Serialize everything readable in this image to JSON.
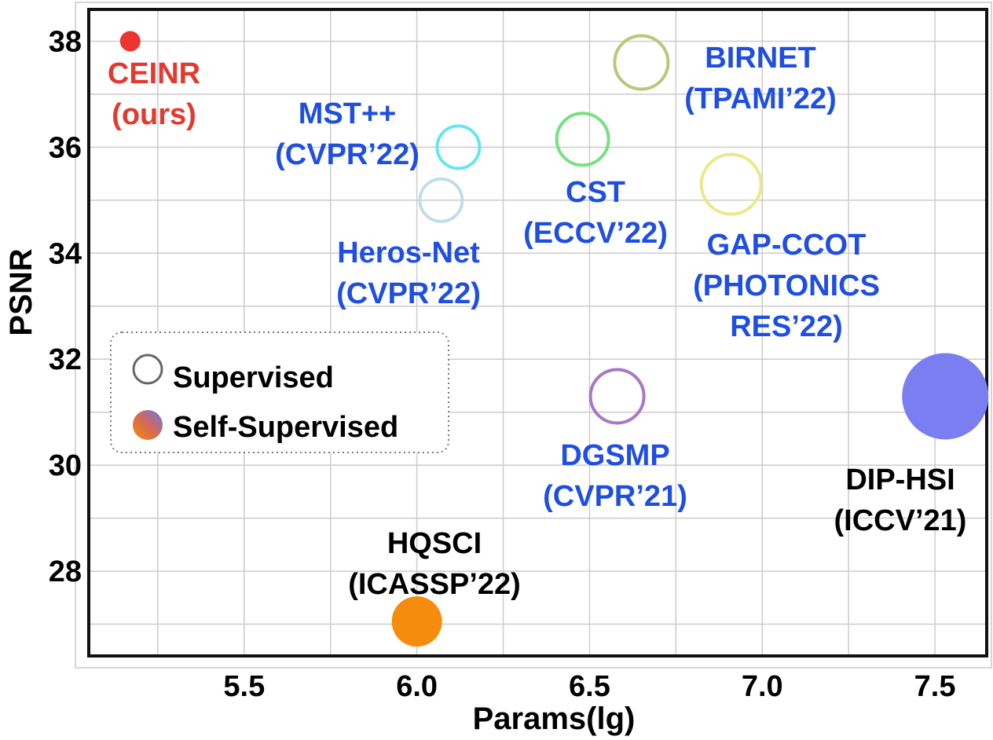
{
  "chart_data": {
    "type": "scatter",
    "title": "",
    "xlabel": "Params(lg)",
    "ylabel": "PSNR",
    "xlim": [
      5.05,
      7.65
    ],
    "ylim": [
      26.4,
      38.6
    ],
    "x_ticks": [
      "5.5",
      "6.0",
      "6.5",
      "7.0",
      "7.5"
    ],
    "y_ticks": [
      "28",
      "30",
      "32",
      "34",
      "36",
      "38"
    ],
    "grid": true,
    "legend_position": "middle-left",
    "legend": [
      {
        "label": "Supervised",
        "style": "hollow"
      },
      {
        "label": "Self-Supervised",
        "style": "filled-gradient"
      }
    ],
    "points": [
      {
        "name": "CEINR (ours)",
        "label_lines": [
          "CEINR",
          "(ours)"
        ],
        "x": 5.17,
        "y": 38.0,
        "type": "filled",
        "color": "#ee3333",
        "label_color": "#e23a2e"
      },
      {
        "name": "MST++ (CVPR'22)",
        "label_lines": [
          "MST++",
          "(CVPR’22)"
        ],
        "x": 6.12,
        "y": 36.0,
        "type": "hollow",
        "color": "#66e6ee",
        "label_color": "#1f4fe0"
      },
      {
        "name": "Heros-Net (CVPR'22)",
        "label_lines": [
          "Heros-Net",
          "(CVPR’22)"
        ],
        "x": 6.07,
        "y": 35.0,
        "type": "hollow",
        "color": "#c2dceb",
        "label_color": "#1f4fe0"
      },
      {
        "name": "CST (ECCV'22)",
        "label_lines": [
          "CST",
          "(ECCV’22)"
        ],
        "x": 6.48,
        "y": 36.15,
        "type": "hollow",
        "color": "#78e080",
        "label_color": "#1f4fe0"
      },
      {
        "name": "BIRNET (TPAMI'22)",
        "label_lines": [
          "BIRNET",
          "(TPAMI’22)"
        ],
        "x": 6.65,
        "y": 37.6,
        "type": "hollow",
        "color": "#b8c878",
        "label_color": "#1f4fe0"
      },
      {
        "name": "GAP-CCOT (PHOTONICS RES'22)",
        "label_lines": [
          "GAP-CCOT",
          "(PHOTONICS",
          "RES’22)"
        ],
        "x": 6.91,
        "y": 35.3,
        "type": "hollow",
        "color": "#ece88a",
        "label_color": "#1f4fe0"
      },
      {
        "name": "DGSMP (CVPR'21)",
        "label_lines": [
          "DGSMP",
          "(CVPR’21)"
        ],
        "x": 6.58,
        "y": 31.3,
        "type": "hollow",
        "color": "#a878c8",
        "label_color": "#1f4fe0"
      },
      {
        "name": "DIP-HSI (ICCV'21)",
        "label_lines": [
          "DIP-HSI",
          "(ICCV’21)"
        ],
        "x": 7.53,
        "y": 31.3,
        "type": "filled",
        "color": "#7b7ef0",
        "label_color": "#000000"
      },
      {
        "name": "HQSCI (ICASSP'22)",
        "label_lines": [
          "HQSCI",
          "(ICASSP’22)"
        ],
        "x": 6.0,
        "y": 27.05,
        "type": "filled",
        "color": "#f68c0e",
        "label_color": "#000000"
      }
    ]
  }
}
